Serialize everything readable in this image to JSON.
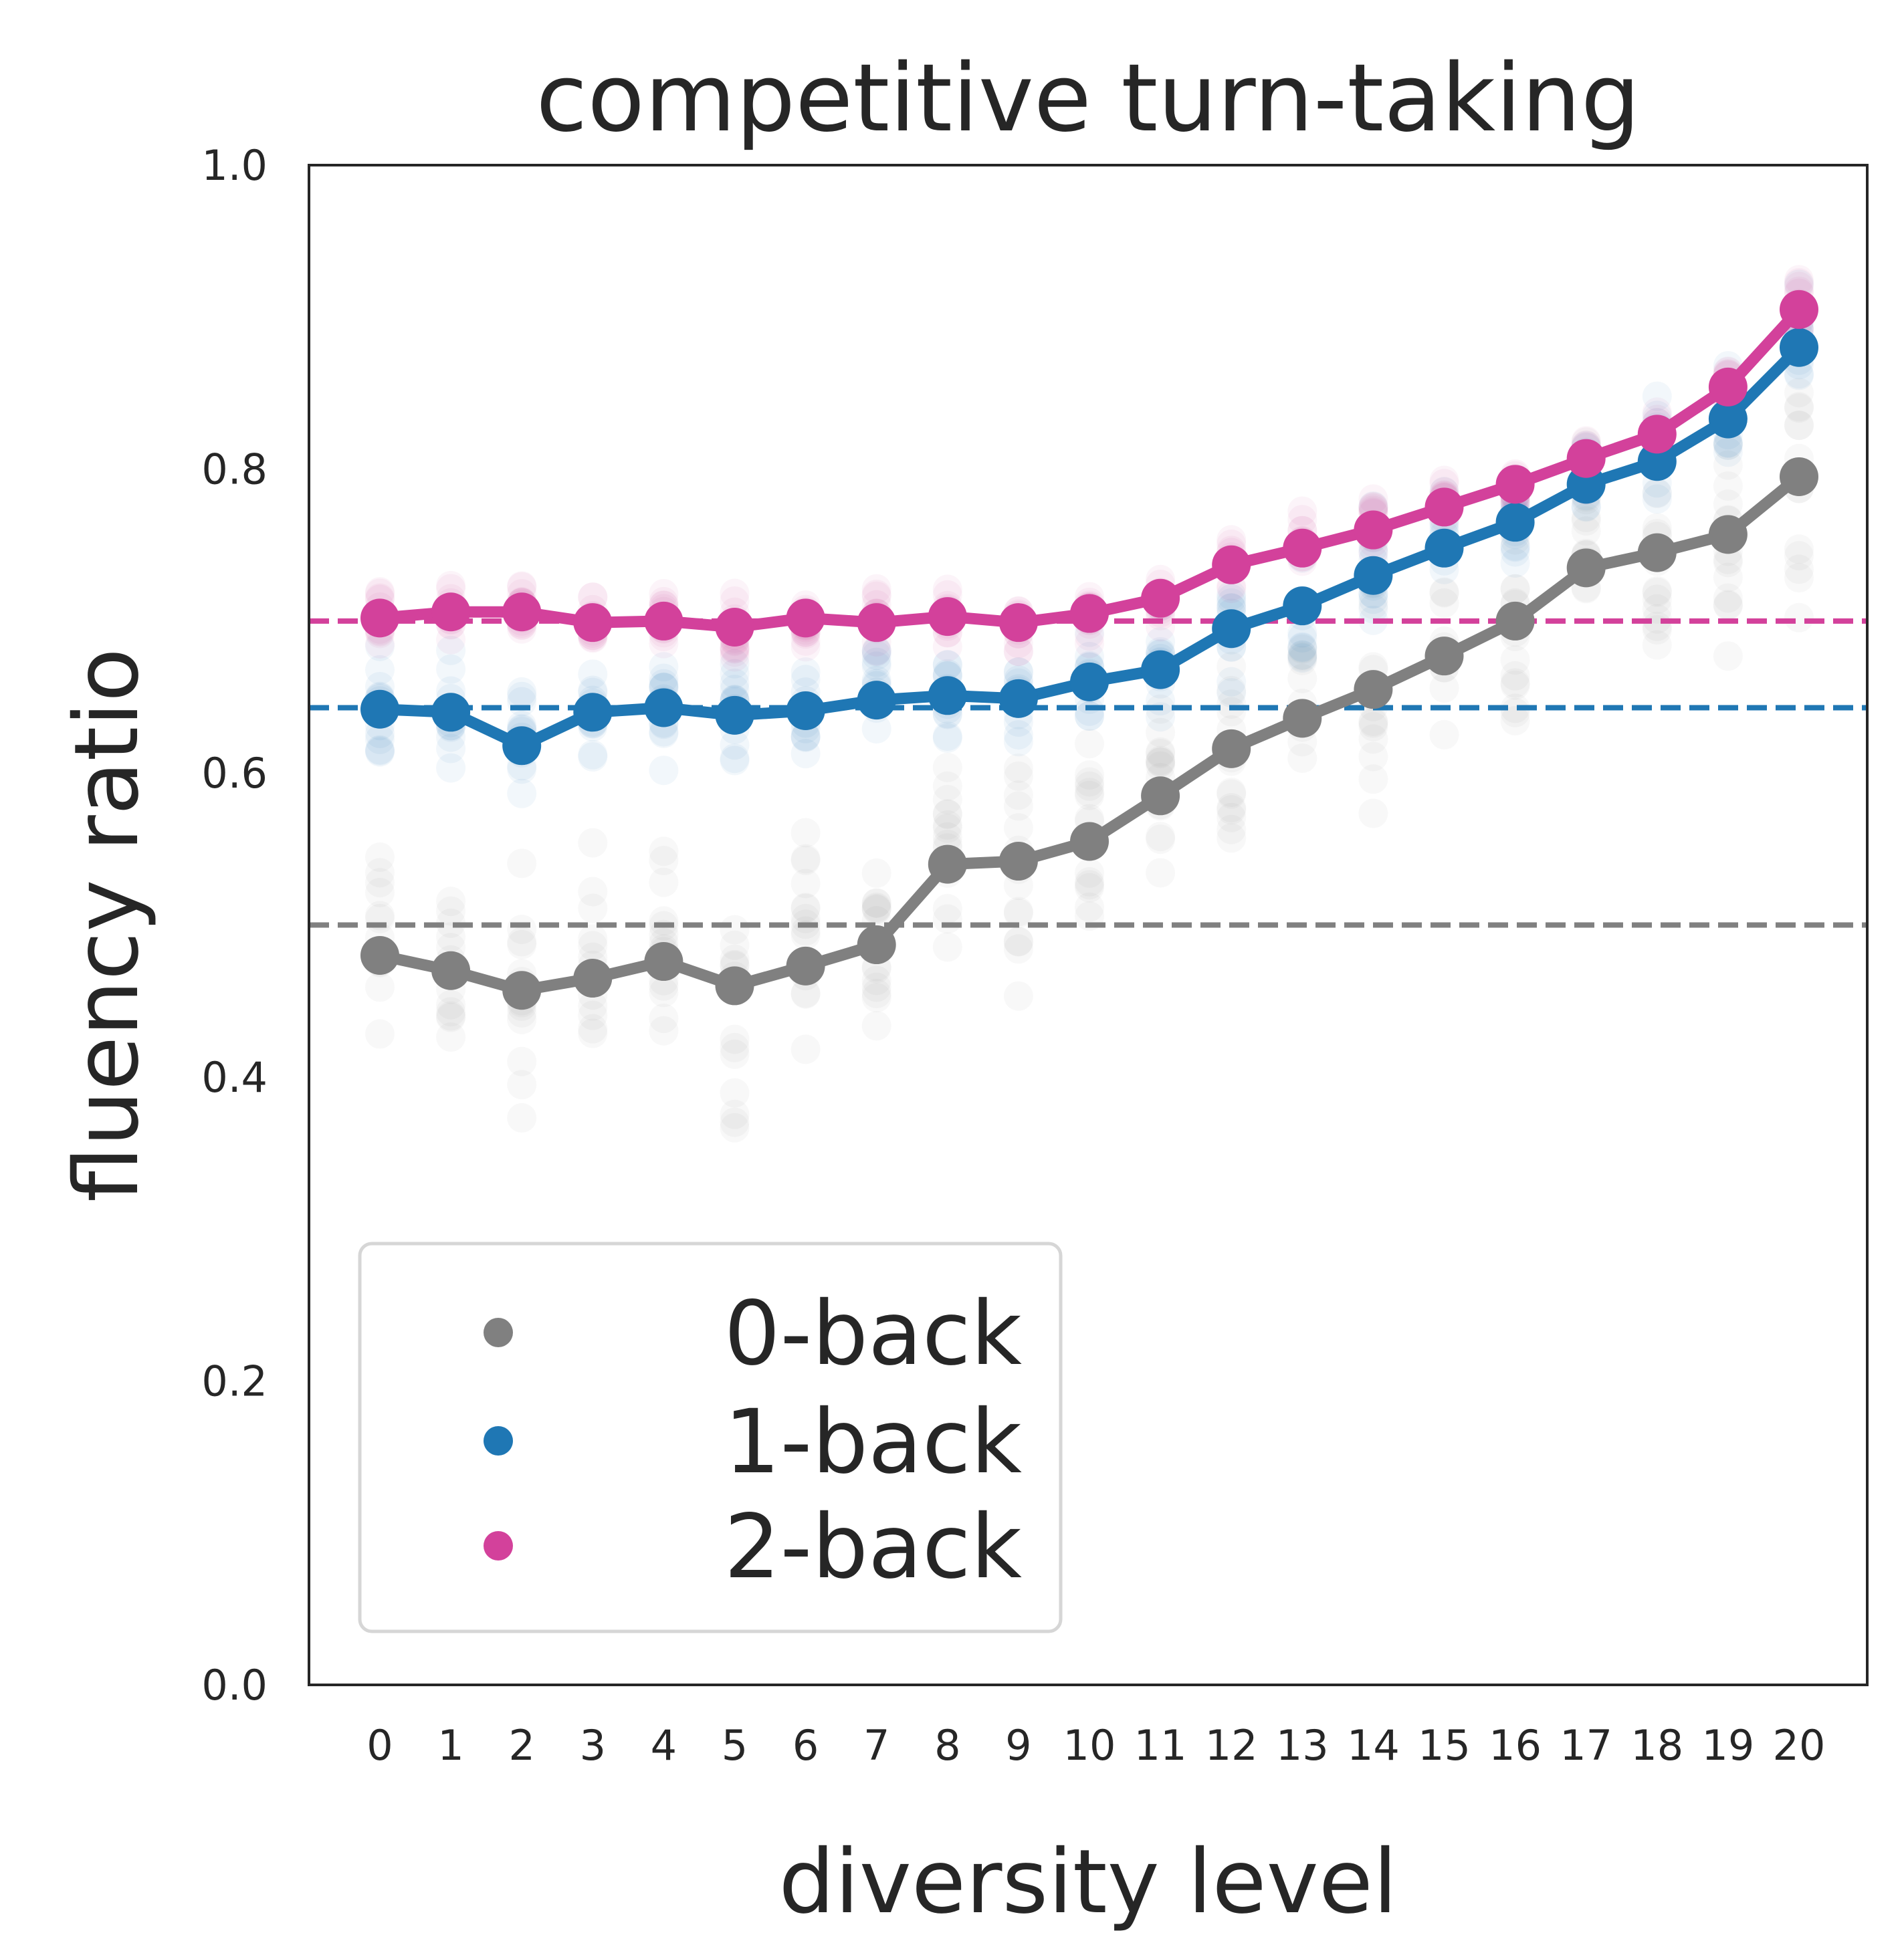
{
  "chart_data": {
    "type": "line",
    "title": "competitive turn-taking",
    "xlabel": "diversity level",
    "ylabel": "fluency ratio",
    "categories": [
      "0",
      "1",
      "2",
      "3",
      "4",
      "5",
      "6",
      "7",
      "8",
      "9",
      "10",
      "11",
      "12",
      "13",
      "14",
      "15",
      "16",
      "17",
      "18",
      "19",
      "20"
    ],
    "ylim": [
      0.0,
      1.0
    ],
    "yticks": [
      "0.0",
      "0.2",
      "0.4",
      "0.6",
      "0.8",
      "1.0"
    ],
    "grid": false,
    "legend_position": "lower-left",
    "series": [
      {
        "name": "0-back",
        "color": "#808080",
        "baseline": 0.5,
        "values": [
          0.48,
          0.47,
          0.457,
          0.465,
          0.476,
          0.46,
          0.473,
          0.487,
          0.54,
          0.542,
          0.555,
          0.585,
          0.616,
          0.636,
          0.655,
          0.677,
          0.7,
          0.735,
          0.745,
          0.757,
          0.795
        ]
      },
      {
        "name": "1-back",
        "color": "#1f77b4",
        "baseline": 0.643,
        "values": [
          0.642,
          0.64,
          0.618,
          0.64,
          0.643,
          0.638,
          0.641,
          0.648,
          0.651,
          0.649,
          0.66,
          0.668,
          0.695,
          0.71,
          0.73,
          0.748,
          0.765,
          0.79,
          0.805,
          0.833,
          0.88
        ]
      },
      {
        "name": "2-back",
        "color": "#d3419b",
        "baseline": 0.7,
        "values": [
          0.702,
          0.706,
          0.706,
          0.699,
          0.7,
          0.696,
          0.702,
          0.699,
          0.703,
          0.699,
          0.705,
          0.715,
          0.737,
          0.748,
          0.76,
          0.775,
          0.79,
          0.807,
          0.823,
          0.854,
          0.905
        ]
      }
    ]
  }
}
